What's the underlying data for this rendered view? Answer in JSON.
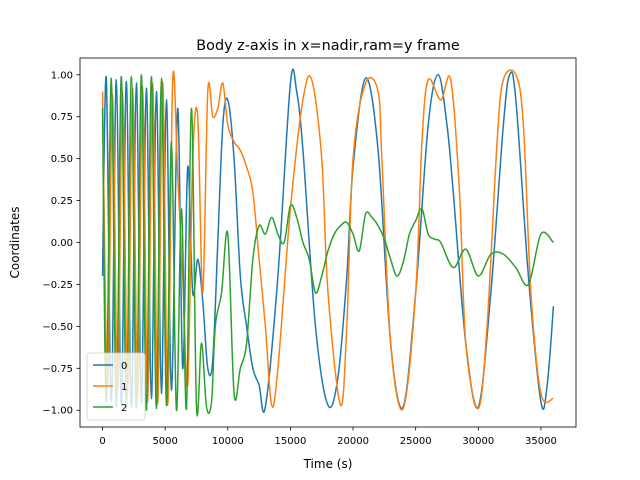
{
  "chart_data": {
    "type": "line",
    "title": "Body z-axis in x=nadir,ram=y frame",
    "xlabel": "Time (s)",
    "ylabel": "Coordinates",
    "xlim": [
      -1800,
      37800
    ],
    "ylim": [
      -1.1,
      1.1
    ],
    "xticks": [
      0,
      5000,
      10000,
      15000,
      20000,
      25000,
      30000,
      35000
    ],
    "xtick_labels": [
      "0",
      "5000",
      "10000",
      "15000",
      "20000",
      "25000",
      "30000",
      "35000"
    ],
    "yticks": [
      -1.0,
      -0.75,
      -0.5,
      -0.25,
      0.0,
      0.25,
      0.5,
      0.75,
      1.0
    ],
    "ytick_labels": [
      "−1.00",
      "−0.75",
      "−0.50",
      "−0.25",
      "0.00",
      "0.25",
      "0.50",
      "0.75",
      "1.00"
    ],
    "grid": false,
    "legend_position": "lower-left",
    "series": [
      {
        "name": "0",
        "color": "#1f77b4",
        "x": [
          0,
          300,
          700,
          1100,
          1500,
          1900,
          2300,
          2700,
          3100,
          3500,
          3900,
          4300,
          4700,
          5100,
          5500,
          6000,
          6400,
          6800,
          7200,
          7600,
          8000,
          8400,
          8800,
          9200,
          9600,
          10000,
          10500,
          11000,
          11500,
          12000,
          12500,
          13000,
          14000,
          15000,
          15500,
          16000,
          17000,
          18000,
          18800,
          19500,
          20000,
          21000,
          22000,
          23000,
          24000,
          25000,
          26000,
          26800,
          27500,
          28000,
          29000,
          30000,
          31000,
          32000,
          32500,
          33000,
          34000,
          35000,
          35500,
          36000
        ],
        "y": [
          -0.2,
          0.98,
          -0.95,
          0.97,
          -0.97,
          0.96,
          -0.98,
          0.95,
          -0.96,
          0.92,
          -0.93,
          0.9,
          -0.9,
          0.85,
          -0.88,
          0.8,
          -0.75,
          0.45,
          -0.3,
          -0.1,
          -0.35,
          -0.75,
          -0.7,
          0.0,
          0.7,
          0.85,
          0.5,
          -0.2,
          -0.5,
          -0.75,
          -0.85,
          -0.98,
          -0.2,
          0.95,
          0.9,
          0.55,
          -0.5,
          -0.97,
          -0.8,
          -0.2,
          0.45,
          0.98,
          0.55,
          -0.6,
          -0.98,
          -0.3,
          0.7,
          1.0,
          0.7,
          0.3,
          -0.6,
          -0.98,
          -0.3,
          0.7,
          1.0,
          0.85,
          -0.2,
          -0.95,
          -0.85,
          -0.38
        ]
      },
      {
        "name": "1",
        "color": "#ff7f0e",
        "x": [
          0,
          400,
          800,
          1200,
          1600,
          2000,
          2400,
          2800,
          3200,
          3600,
          4000,
          4400,
          4800,
          5200,
          5600,
          6000,
          6400,
          6800,
          7200,
          7600,
          8000,
          8400,
          8800,
          9200,
          9600,
          10000,
          10500,
          11000,
          11500,
          12000,
          12500,
          13000,
          13500,
          14000,
          15000,
          16000,
          16700,
          17500,
          18000,
          19000,
          19500,
          20000,
          21000,
          22000,
          22300,
          23000,
          24000,
          25000,
          25500,
          26000,
          27000,
          27800,
          28500,
          29000,
          30000,
          30700,
          31500,
          32000,
          33000,
          33600,
          34200,
          35000,
          36000
        ],
        "y": [
          0.9,
          -0.85,
          0.88,
          -0.9,
          0.9,
          -0.92,
          0.92,
          -0.93,
          0.93,
          -0.95,
          0.95,
          -0.96,
          0.96,
          -0.97,
          0.97,
          0.4,
          -0.2,
          -0.85,
          0.5,
          0.75,
          -0.3,
          0.9,
          0.75,
          0.8,
          0.95,
          0.7,
          0.6,
          0.55,
          0.45,
          0.3,
          -0.1,
          -0.5,
          -0.97,
          -0.75,
          0.2,
          0.85,
          0.97,
          0.5,
          -0.3,
          -0.97,
          -0.5,
          0.5,
          0.95,
          0.9,
          0.5,
          -0.6,
          -0.99,
          -0.3,
          0.6,
          0.97,
          0.85,
          0.97,
          0.3,
          -0.6,
          -0.99,
          -0.5,
          0.6,
          0.97,
          1.0,
          0.7,
          -0.3,
          -0.9,
          -0.93
        ]
      },
      {
        "name": "2",
        "color": "#2ca02c",
        "x": [
          0,
          300,
          700,
          1100,
          1500,
          1900,
          2300,
          2700,
          3100,
          3500,
          3900,
          4300,
          4700,
          5100,
          5500,
          5900,
          6300,
          6700,
          7100,
          7500,
          7900,
          8300,
          8700,
          9000,
          9500,
          10000,
          10500,
          11000,
          11500,
          12000,
          12500,
          13000,
          13500,
          14000,
          14500,
          15000,
          15500,
          16000,
          16500,
          17000,
          17500,
          18000,
          18500,
          19000,
          19500,
          20000,
          20500,
          21000,
          21500,
          22000,
          22500,
          23000,
          23500,
          24000,
          24500,
          25000,
          25500,
          26000,
          26500,
          27000,
          28000,
          29000,
          30000,
          31000,
          32000,
          33000,
          34000,
          35000,
          36000
        ],
        "y": [
          0.8,
          -0.95,
          0.98,
          -0.98,
          0.99,
          -0.99,
          0.99,
          -0.99,
          1.0,
          -1.0,
          0.99,
          -0.99,
          0.98,
          -0.97,
          0.6,
          -1.0,
          0.2,
          -0.99,
          0.8,
          -0.98,
          -0.6,
          -0.98,
          -0.95,
          -0.5,
          -0.3,
          0.05,
          -0.9,
          -0.75,
          -0.6,
          -0.1,
          0.1,
          0.05,
          0.15,
          0.05,
          0.0,
          0.22,
          0.15,
          0.0,
          -0.1,
          -0.3,
          -0.2,
          -0.05,
          0.05,
          0.1,
          0.12,
          0.05,
          -0.05,
          0.17,
          0.15,
          0.1,
          0.02,
          -0.1,
          -0.2,
          -0.12,
          0.05,
          0.13,
          0.2,
          0.05,
          0.02,
          0.0,
          -0.15,
          -0.04,
          -0.2,
          -0.07,
          -0.07,
          -0.15,
          -0.25,
          0.05,
          0.0
        ]
      }
    ]
  }
}
